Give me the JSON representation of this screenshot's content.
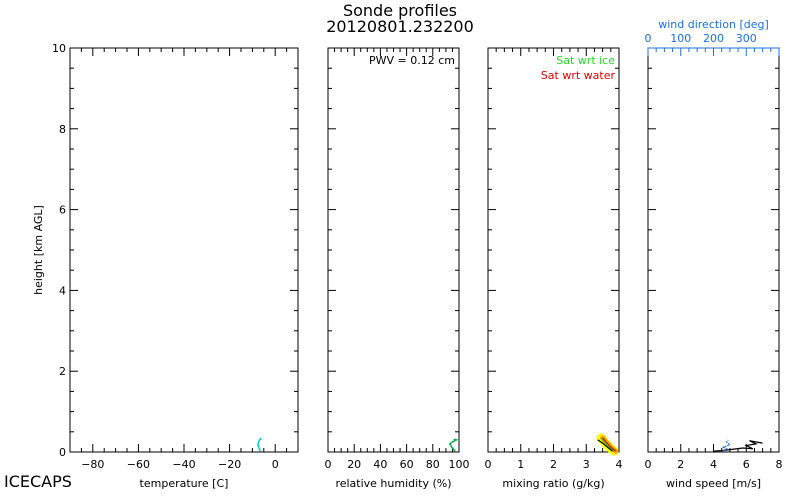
{
  "header": {
    "title": "Sonde profiles",
    "subtitle": "20120801.232200"
  },
  "footer": {
    "project": "ICECAPS"
  },
  "colors": {
    "axis": "#000000",
    "temperature": "#00cccc",
    "dewpoint": "#2a5fd6",
    "rh": "#00b050",
    "sat_ice": "#22dd22",
    "sat_water": "#dd0000",
    "shade_outer": "#ffff00",
    "shade_mid": "#ffa500",
    "wind_dir": "#1e6fdc",
    "wind_speed": "#000000"
  },
  "chart_data": [
    {
      "type": "line",
      "panel": "temperature",
      "xlabel": "temperature [C]",
      "ylabel": "height [km AGL]",
      "xlim": [
        -90,
        10
      ],
      "ylim": [
        0,
        10
      ],
      "xticks": [
        -80,
        -60,
        -40,
        -20,
        0
      ],
      "yticks": [
        0,
        2,
        4,
        6,
        8,
        10
      ],
      "series": [
        {
          "x": [
            -6.5,
            -7.0,
            -7.6,
            -7.2,
            -6.8,
            -6.2
          ],
          "y": [
            0.02,
            0.08,
            0.18,
            0.26,
            0.3,
            0.35
          ]
        }
      ]
    },
    {
      "type": "line",
      "panel": "relative humidity",
      "xlabel": "relative humidity (%)",
      "xlim": [
        0,
        100
      ],
      "ylim": [
        0,
        10
      ],
      "xticks": [
        0,
        20,
        40,
        60,
        80,
        100
      ],
      "annotation": "PWV = 0.12 cm",
      "series": [
        {
          "x": [
            97,
            95,
            93,
            95,
            98,
            96
          ],
          "y": [
            0.02,
            0.1,
            0.2,
            0.25,
            0.3,
            0.32
          ]
        }
      ]
    },
    {
      "type": "line",
      "panel": "mixing ratio",
      "xlabel": "mixing ratio (g/kg)",
      "xlim": [
        0,
        4
      ],
      "ylim": [
        0,
        10
      ],
      "xticks": [
        0,
        1,
        2,
        3,
        4
      ],
      "legend": [
        "Sat wrt ice",
        "Sat wrt water"
      ],
      "legend_position": "top-right",
      "series": [
        {
          "name": "Sat wrt ice",
          "x": [
            3.85,
            3.7,
            3.55,
            3.45
          ],
          "y": [
            0.02,
            0.12,
            0.25,
            0.35
          ]
        },
        {
          "name": "Sat wrt water",
          "x": [
            3.9,
            3.75,
            3.6,
            3.5
          ],
          "y": [
            0.02,
            0.12,
            0.25,
            0.35
          ]
        },
        {
          "x": [
            3.8,
            3.65,
            3.5,
            3.35
          ],
          "y": [
            0.02,
            0.12,
            0.22,
            0.3
          ]
        }
      ]
    },
    {
      "type": "line",
      "panel": "wind",
      "xlabel": "wind speed [m/s]",
      "xlim": [
        0,
        8
      ],
      "ylim": [
        0,
        10
      ],
      "xticks": [
        0,
        2,
        4,
        6,
        8
      ],
      "top_axis_label": "wind direction [deg]",
      "top_xlim": [
        0,
        400
      ],
      "top_xticks": [
        0,
        100,
        200,
        300
      ],
      "series": [
        {
          "x": [
            4.0,
            4.6,
            5.0,
            5.8,
            6.4,
            6.0,
            6.6,
            6.2,
            7.0
          ],
          "y": [
            0.02,
            0.04,
            0.06,
            0.1,
            0.08,
            0.16,
            0.2,
            0.28,
            0.22
          ]
        },
        {
          "x": [
            4.6,
            4.8,
            4.6,
            5.0,
            4.8,
            4.9
          ],
          "y": [
            0.02,
            0.08,
            0.12,
            0.18,
            0.24,
            0.3
          ]
        }
      ]
    }
  ]
}
